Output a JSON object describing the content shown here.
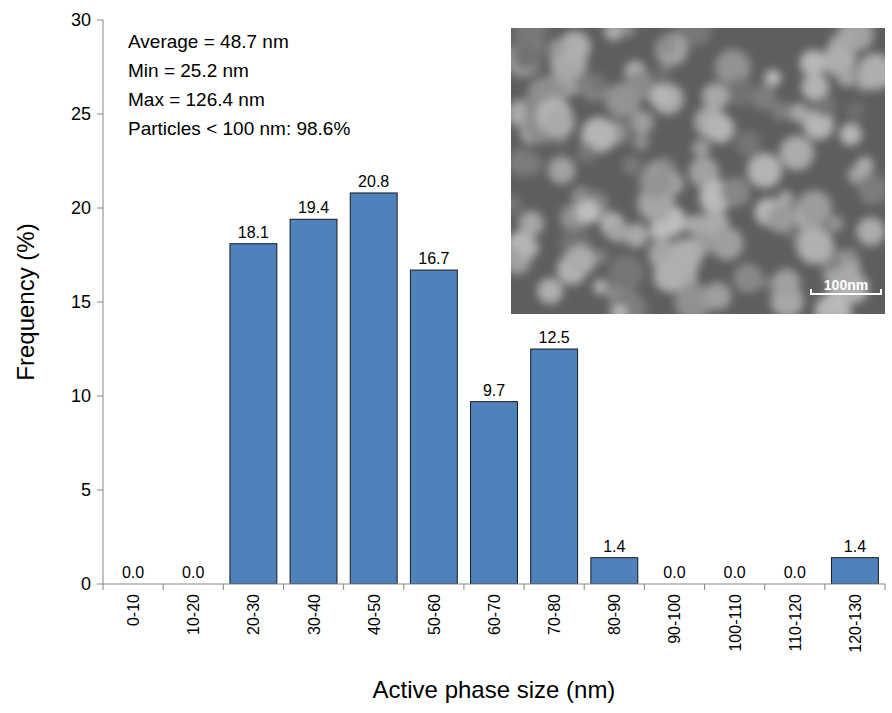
{
  "chart_data": {
    "type": "bar",
    "x_label": "Active phase size (nm)",
    "y_label": "Frequency (%)",
    "categories": [
      "0-10",
      "10-20",
      "20-30",
      "30-40",
      "40-50",
      "50-60",
      "60-70",
      "70-80",
      "80-90",
      "90-100",
      "100-110",
      "110-120",
      "120-130"
    ],
    "values": [
      0.0,
      0.0,
      18.1,
      19.4,
      20.8,
      16.7,
      9.7,
      12.5,
      1.4,
      0.0,
      0.0,
      0.0,
      1.4
    ],
    "value_labels": [
      "0.0",
      "0.0",
      "18.1",
      "19.4",
      "20.8",
      "16.7",
      "9.7",
      "12.5",
      "1.4",
      "0.0",
      "0.0",
      "0.0",
      "1.4"
    ],
    "color": "#4f81bd",
    "ylim": [
      0,
      30
    ],
    "yticks": [
      0,
      5,
      10,
      15,
      20,
      25,
      30
    ],
    "grid": false,
    "data_labels": true,
    "annotations": [
      "Average = 48.7 nm",
      "Min = 25.2 nm",
      "Max = 126.4 nm",
      "Particles < 100 nm: 98.6%"
    ],
    "image_label": "100nm"
  }
}
